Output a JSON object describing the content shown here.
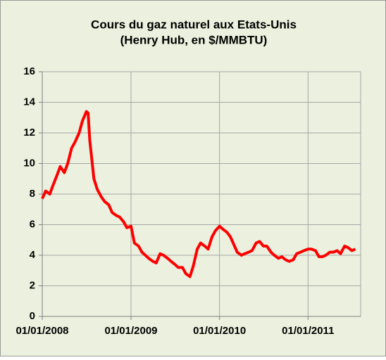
{
  "chart_data": {
    "type": "line",
    "title": "Cours du gaz naturel aux Etats-Unis",
    "subtitle": "(Henry Hub, en $/MMBTU)",
    "x": [
      "01/01/2008",
      "15/01/2008",
      "01/02/2008",
      "15/02/2008",
      "01/03/2008",
      "15/03/2008",
      "01/04/2008",
      "15/04/2008",
      "01/05/2008",
      "15/05/2008",
      "01/06/2008",
      "15/06/2008",
      "01/07/2008",
      "08/07/2008",
      "15/07/2008",
      "01/08/2008",
      "15/08/2008",
      "01/09/2008",
      "15/09/2008",
      "01/10/2008",
      "15/10/2008",
      "01/11/2008",
      "15/11/2008",
      "01/12/2008",
      "15/12/2008",
      "01/01/2009",
      "15/01/2009",
      "01/02/2009",
      "15/02/2009",
      "01/03/2009",
      "15/03/2009",
      "01/04/2009",
      "15/04/2009",
      "01/05/2009",
      "15/05/2009",
      "01/06/2009",
      "15/06/2009",
      "01/07/2009",
      "15/07/2009",
      "01/08/2009",
      "15/08/2009",
      "01/09/2009",
      "15/09/2009",
      "01/10/2009",
      "15/10/2009",
      "01/11/2009",
      "15/11/2009",
      "01/12/2009",
      "15/12/2009",
      "01/01/2010",
      "15/01/2010",
      "01/02/2010",
      "15/02/2010",
      "01/03/2010",
      "15/03/2010",
      "01/04/2010",
      "15/04/2010",
      "01/05/2010",
      "15/05/2010",
      "01/06/2010",
      "15/06/2010",
      "01/07/2010",
      "15/07/2010",
      "01/08/2010",
      "15/08/2010",
      "01/09/2010",
      "15/09/2010",
      "01/10/2010",
      "15/10/2010",
      "01/11/2010",
      "15/11/2010",
      "01/12/2010",
      "15/12/2010",
      "01/01/2011",
      "15/01/2011",
      "01/02/2011",
      "15/02/2011",
      "01/03/2011",
      "15/03/2011",
      "01/04/2011",
      "15/04/2011",
      "01/05/2011",
      "15/05/2011",
      "01/06/2011",
      "15/06/2011",
      "01/07/2011",
      "15/07/2011"
    ],
    "series": [
      {
        "color": "#ff0000",
        "values": [
          7.7,
          8.2,
          8.0,
          8.6,
          9.2,
          9.8,
          9.4,
          10.0,
          11.0,
          11.4,
          12.0,
          12.8,
          13.4,
          13.3,
          11.5,
          9.0,
          8.3,
          7.8,
          7.5,
          7.3,
          6.8,
          6.6,
          6.5,
          6.2,
          5.8,
          5.9,
          4.8,
          4.6,
          4.2,
          4.0,
          3.8,
          3.6,
          3.5,
          4.1,
          4.0,
          3.8,
          3.6,
          3.4,
          3.2,
          3.2,
          2.8,
          2.6,
          3.3,
          4.4,
          4.8,
          4.6,
          4.4,
          5.2,
          5.6,
          5.9,
          5.7,
          5.5,
          5.2,
          4.7,
          4.2,
          4.0,
          4.1,
          4.2,
          4.3,
          4.8,
          4.9,
          4.6,
          4.6,
          4.2,
          4.0,
          3.8,
          3.9,
          3.7,
          3.6,
          3.7,
          4.1,
          4.2,
          4.3,
          4.4,
          4.4,
          4.3,
          3.9,
          3.9,
          4.0,
          4.2,
          4.2,
          4.3,
          4.1,
          4.6,
          4.5,
          4.3,
          4.4
        ]
      }
    ],
    "xlim": [
      "01/01/2008",
      "06/08/2011"
    ],
    "xticks": [
      "01/01/2008",
      "01/01/2009",
      "01/01/2010",
      "01/01/2011"
    ],
    "ylim": [
      0,
      16
    ],
    "yticks": [
      0,
      2,
      4,
      6,
      8,
      10,
      12,
      14,
      16
    ],
    "grid": true
  }
}
